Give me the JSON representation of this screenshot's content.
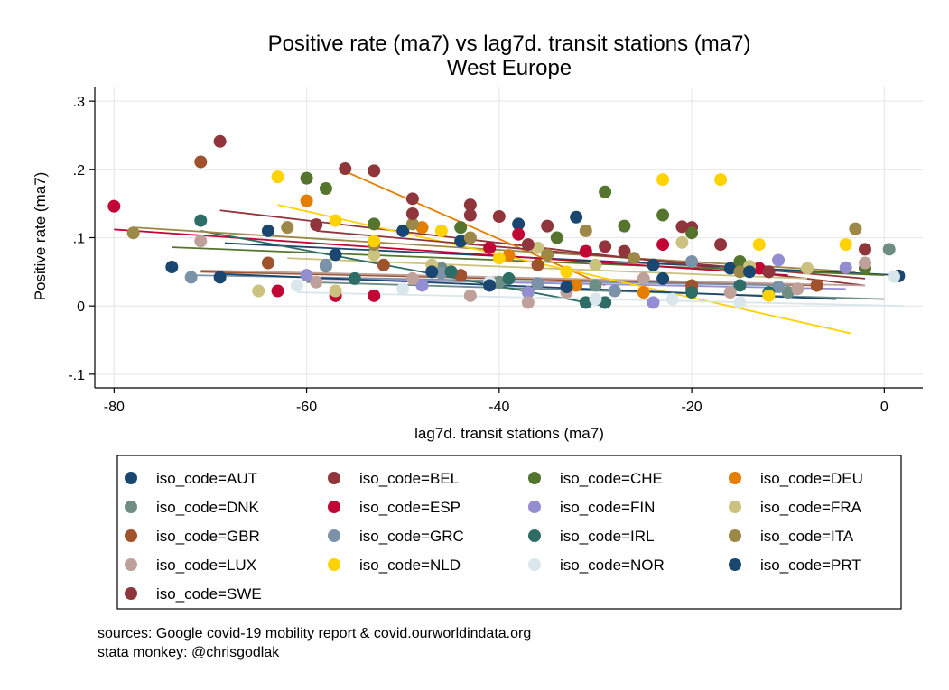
{
  "chart_data": {
    "type": "scatter",
    "title": "Positive rate (ma7) vs lag7d. transit stations (ma7)",
    "subtitle": "West Europe",
    "xlabel": "lag7d. transit stations (ma7)",
    "ylabel": "Positive rate (ma7)",
    "xlim": [
      -82,
      4
    ],
    "ylim": [
      -0.12,
      0.32
    ],
    "xticks": [
      {
        "v": -80,
        "label": "-80"
      },
      {
        "v": -60,
        "label": "-60"
      },
      {
        "v": -40,
        "label": "-40"
      },
      {
        "v": -20,
        "label": "-20"
      },
      {
        "v": 0,
        "label": "0"
      }
    ],
    "yticks": [
      {
        "v": -0.1,
        "label": "-.1"
      },
      {
        "v": 0,
        "label": "0"
      },
      {
        "v": 0.1,
        "label": ".1"
      },
      {
        "v": 0.2,
        "label": ".2"
      },
      {
        "v": 0.3,
        "label": ".3"
      }
    ],
    "grid": true,
    "legend_position": "bottom",
    "series": [
      {
        "name": "iso_code=AUT",
        "color": "#1a476f",
        "points": [
          [
            -74,
            0.057
          ],
          [
            -64,
            0.11
          ],
          [
            -50,
            0.11
          ],
          [
            -44,
            0.095
          ],
          [
            -38,
            0.12
          ],
          [
            -32,
            0.13
          ],
          [
            -24,
            0.06
          ],
          [
            -16,
            0.055
          ],
          [
            -12,
            0.05
          ],
          [
            1.5,
            0.044
          ]
        ],
        "fit": [
          [
            -68.5,
            0.092
          ],
          [
            1.5,
            0.045
          ]
        ]
      },
      {
        "name": "iso_code=BEL",
        "color": "#90353b",
        "points": [
          [
            -69,
            0.241
          ],
          [
            -56,
            0.201
          ],
          [
            -53,
            0.198
          ],
          [
            -49,
            0.157
          ],
          [
            -43,
            0.148
          ],
          [
            -40,
            0.131
          ],
          [
            -35,
            0.117
          ],
          [
            -27,
            0.08
          ],
          [
            -20,
            0.115
          ],
          [
            -17,
            0.09
          ],
          [
            -2,
            0.083
          ]
        ],
        "fit": [
          [
            -69,
            0.14
          ],
          [
            -2,
            0.03
          ]
        ]
      },
      {
        "name": "iso_code=CHE",
        "color": "#55752f",
        "points": [
          [
            -60,
            0.187
          ],
          [
            -58,
            0.172
          ],
          [
            -53,
            0.12
          ],
          [
            -44,
            0.115
          ],
          [
            -34,
            0.1
          ],
          [
            -29,
            0.167
          ],
          [
            -27,
            0.117
          ],
          [
            -23,
            0.133
          ],
          [
            -20,
            0.107
          ],
          [
            -15,
            0.065
          ],
          [
            -2,
            0.055
          ]
        ],
        "fit": [
          [
            -74,
            0.086
          ],
          [
            0,
            0.045
          ]
        ]
      },
      {
        "name": "iso_code=DEU",
        "color": "#e37e00",
        "points": [
          [
            -60,
            0.154
          ],
          [
            -48,
            0.115
          ],
          [
            -39,
            0.074
          ],
          [
            -32,
            0.03
          ],
          [
            -25,
            0.02
          ],
          [
            -7,
            0.03
          ]
        ],
        "fit": [
          [
            -56,
            0.197
          ],
          [
            -29,
            0.03
          ]
        ]
      },
      {
        "name": "iso_code=DNK",
        "color": "#6e8e84",
        "points": [
          [
            -58,
            0.058
          ],
          [
            -46,
            0.055
          ],
          [
            -40,
            0.035
          ],
          [
            -30,
            0.03
          ],
          [
            -20,
            0.025
          ],
          [
            -10,
            0.02
          ],
          [
            0.5,
            0.083
          ]
        ],
        "fit": [
          [
            -60,
            0.035
          ],
          [
            0,
            0.01
          ]
        ]
      },
      {
        "name": "iso_code=ESP",
        "color": "#c10534",
        "points": [
          [
            -80,
            0.146
          ],
          [
            -63,
            0.022
          ],
          [
            -57,
            0.015
          ],
          [
            -53,
            0.015
          ],
          [
            -45,
            0.05
          ],
          [
            -41,
            0.085
          ],
          [
            -38,
            0.105
          ],
          [
            -31,
            0.08
          ],
          [
            -23,
            0.09
          ],
          [
            -13,
            0.055
          ]
        ],
        "fit": [
          [
            -80,
            0.112
          ],
          [
            -10,
            0.045
          ]
        ]
      },
      {
        "name": "iso_code=FIN",
        "color": "#938dd2",
        "points": [
          [
            -60,
            0.045
          ],
          [
            -48,
            0.03
          ],
          [
            -37,
            0.02
          ],
          [
            -29,
            0.005
          ],
          [
            -24,
            0.005
          ],
          [
            -11,
            0.067
          ],
          [
            -4,
            0.056
          ]
        ],
        "fit": [
          [
            -60,
            0.04
          ],
          [
            -4,
            0.025
          ]
        ]
      },
      {
        "name": "iso_code=FRA",
        "color": "#cac27e",
        "points": [
          [
            -65,
            0.022
          ],
          [
            -57,
            0.022
          ],
          [
            -53,
            0.075
          ],
          [
            -47,
            0.06
          ],
          [
            -36,
            0.085
          ],
          [
            -30,
            0.06
          ],
          [
            -21,
            0.093
          ],
          [
            -14,
            0.058
          ],
          [
            -8,
            0.055
          ]
        ],
        "fit": [
          [
            -62,
            0.07
          ],
          [
            -8,
            0.04
          ]
        ]
      },
      {
        "name": "iso_code=GBR",
        "color": "#a0522d",
        "points": [
          [
            -71,
            0.211
          ],
          [
            -64,
            0.063
          ],
          [
            -52,
            0.06
          ],
          [
            -44,
            0.045
          ],
          [
            -36,
            0.06
          ],
          [
            -20,
            0.03
          ],
          [
            -7,
            0.03
          ]
        ],
        "fit": [
          [
            -71,
            0.05
          ],
          [
            -7,
            0.03
          ]
        ]
      },
      {
        "name": "iso_code=GRC",
        "color": "#7b92a8",
        "points": [
          [
            -72,
            0.042
          ],
          [
            -58,
            0.06
          ],
          [
            -46,
            0.048
          ],
          [
            -36,
            0.033
          ],
          [
            -28,
            0.022
          ],
          [
            -20,
            0.065
          ],
          [
            -11,
            0.028
          ]
        ],
        "fit": [
          [
            -72,
            0.045
          ],
          [
            -10,
            0.03
          ]
        ]
      },
      {
        "name": "iso_code=IRL",
        "color": "#2d6d66",
        "points": [
          [
            -71,
            0.125
          ],
          [
            -55,
            0.04
          ],
          [
            -45,
            0.05
          ],
          [
            -39,
            0.04
          ],
          [
            -31,
            0.005
          ],
          [
            -29,
            0.005
          ],
          [
            -20,
            0.02
          ],
          [
            -15,
            0.03
          ],
          [
            -12,
            0.02
          ]
        ],
        "fit": [
          [
            -71,
            0.11
          ],
          [
            -29,
            0.0
          ]
        ]
      },
      {
        "name": "iso_code=ITA",
        "color": "#9c8847",
        "points": [
          [
            -78,
            0.107
          ],
          [
            -62,
            0.115
          ],
          [
            -53,
            0.09
          ],
          [
            -49,
            0.12
          ],
          [
            -43,
            0.1
          ],
          [
            -35,
            0.075
          ],
          [
            -31,
            0.11
          ],
          [
            -26,
            0.07
          ],
          [
            -15,
            0.05
          ],
          [
            -3,
            0.113
          ]
        ],
        "fit": [
          [
            -78,
            0.115
          ],
          [
            -3,
            0.05
          ]
        ]
      },
      {
        "name": "iso_code=LUX",
        "color": "#bfa19c",
        "points": [
          [
            -71,
            0.095
          ],
          [
            -59,
            0.035
          ],
          [
            -49,
            0.04
          ],
          [
            -43,
            0.015
          ],
          [
            -37,
            0.005
          ],
          [
            -33,
            0.02
          ],
          [
            -25,
            0.04
          ],
          [
            -16,
            0.02
          ],
          [
            -9,
            0.025
          ],
          [
            -2,
            0.063
          ]
        ],
        "fit": [
          [
            -71,
            0.052
          ],
          [
            -2,
            0.03
          ]
        ]
      },
      {
        "name": "iso_code=NLD",
        "color": "#ffd200",
        "points": [
          [
            -63,
            0.189
          ],
          [
            -57,
            0.125
          ],
          [
            -53,
            0.095
          ],
          [
            -46,
            0.11
          ],
          [
            -40,
            0.07
          ],
          [
            -33,
            0.05
          ],
          [
            -23,
            0.185
          ],
          [
            -17,
            0.185
          ],
          [
            -13,
            0.09
          ],
          [
            -4,
            0.09
          ],
          [
            -12,
            0.015
          ]
        ],
        "fit": [
          [
            -63,
            0.148
          ],
          [
            -3.5,
            -0.04
          ]
        ]
      },
      {
        "name": "iso_code=NOR",
        "color": "#d9e6eb",
        "points": [
          [
            -61,
            0.03
          ],
          [
            -50,
            0.025
          ],
          [
            -41,
            0.035
          ],
          [
            -30,
            0.01
          ],
          [
            -22,
            0.01
          ],
          [
            -15,
            0.005
          ],
          [
            1,
            0.043
          ]
        ],
        "fit": [
          [
            -61,
            0.02
          ],
          [
            2,
            0.0
          ]
        ]
      },
      {
        "name": "iso_code=PRT",
        "color": "#1a476f",
        "points": [
          [
            -69,
            0.042
          ],
          [
            -57,
            0.075
          ],
          [
            -47,
            0.05
          ],
          [
            -41,
            0.03
          ],
          [
            -33,
            0.028
          ],
          [
            -23,
            0.04
          ],
          [
            -14,
            0.05
          ]
        ],
        "fit": [
          [
            -69,
            0.047
          ],
          [
            -5,
            0.01
          ]
        ]
      },
      {
        "name": "iso_code=SWE",
        "color": "#90353b",
        "points": [
          [
            -59,
            0.119
          ],
          [
            -49,
            0.135
          ],
          [
            -43,
            0.133
          ],
          [
            -37,
            0.09
          ],
          [
            -29,
            0.087
          ],
          [
            -21,
            0.116
          ],
          [
            -12,
            0.05
          ]
        ],
        "fit": [
          [
            -59,
            0.11
          ],
          [
            -2,
            0.04
          ]
        ]
      }
    ]
  },
  "notes": {
    "line1": "sources: Google covid-19 mobility report & covid.ourworldindata.org",
    "line2": "stata monkey: @chrisgodlak"
  }
}
